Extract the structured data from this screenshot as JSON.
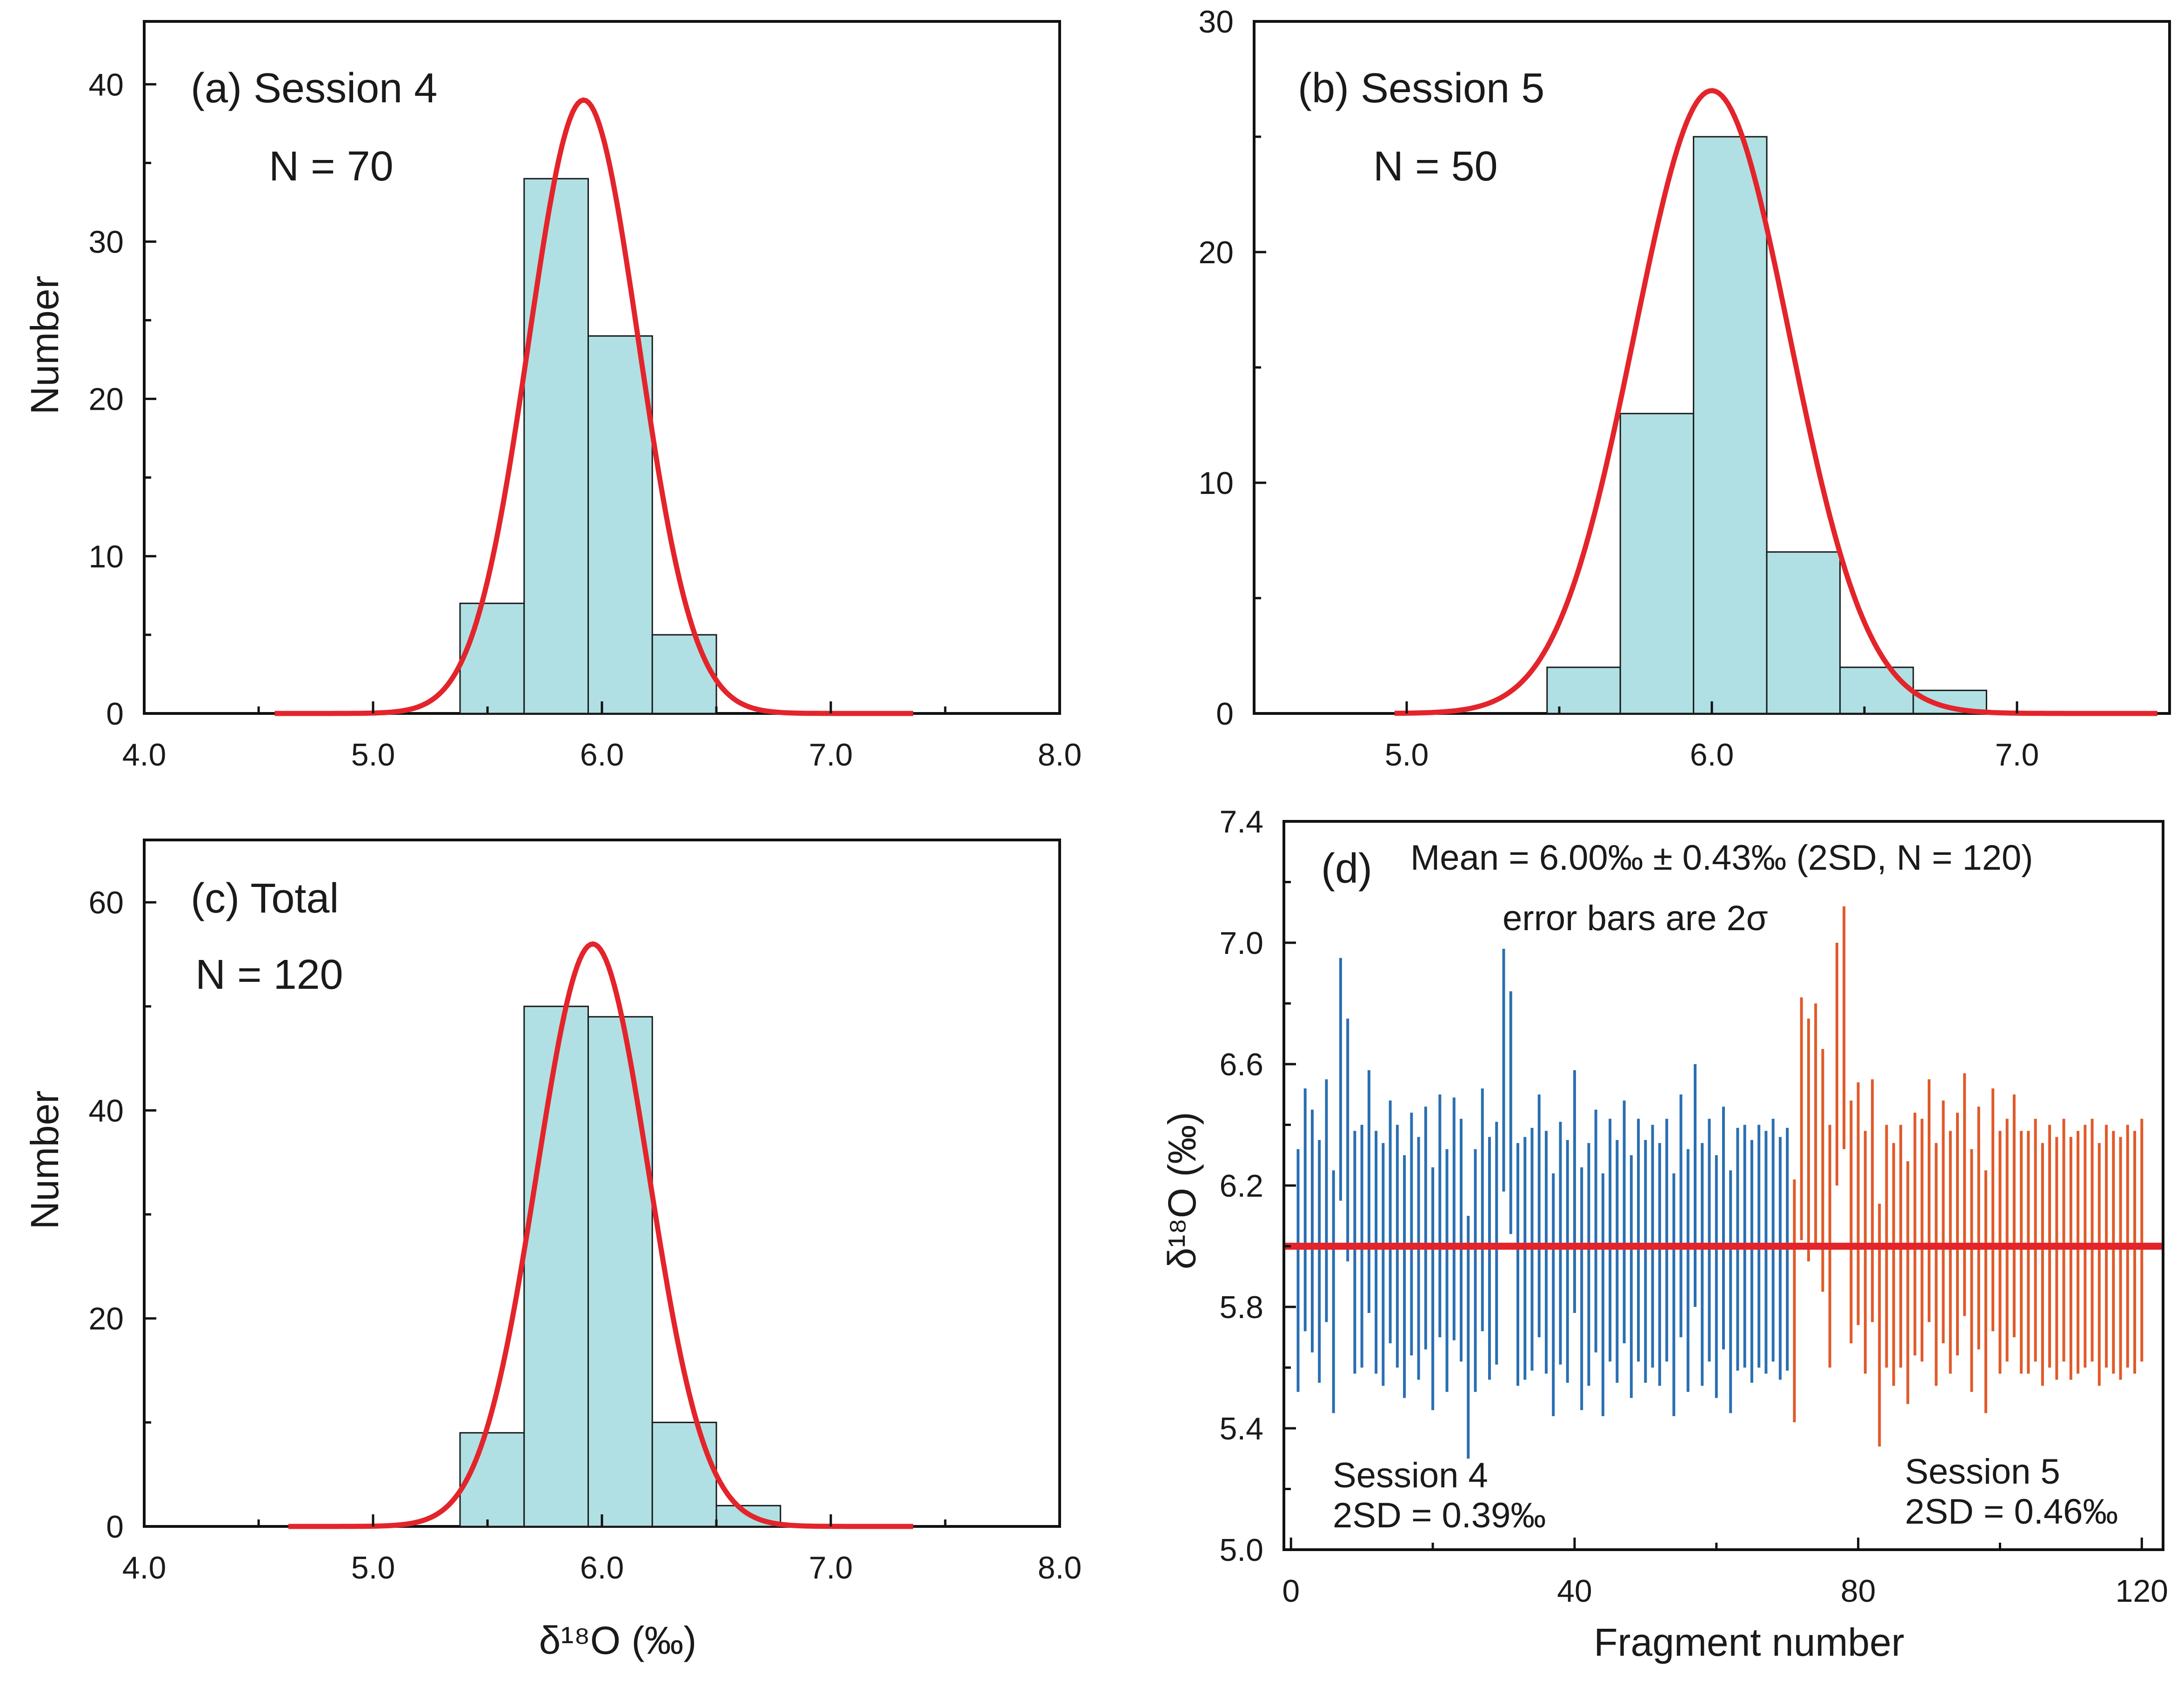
{
  "chart_data": [
    {
      "panel": "a",
      "type": "bar",
      "title": "(a) Session 4",
      "n_label": "N = 70",
      "ylabel": "Number",
      "xlabel": "",
      "xlim": [
        4.0,
        8.0
      ],
      "ylim": [
        0,
        44
      ],
      "xticks": [
        "4.0",
        "5.0",
        "6.0",
        "7.0",
        "8.0"
      ],
      "yticks": [
        "0",
        "10",
        "20",
        "30",
        "40"
      ],
      "bins": [
        {
          "x0": 5.38,
          "x1": 5.66,
          "count": 7
        },
        {
          "x0": 5.66,
          "x1": 5.94,
          "count": 34
        },
        {
          "x0": 5.94,
          "x1": 6.22,
          "count": 24
        },
        {
          "x0": 6.22,
          "x1": 6.5,
          "count": 5
        }
      ],
      "fit": {
        "mean": 5.92,
        "peak": 39,
        "sigma": 0.24,
        "x_range": [
          4.57,
          7.36
        ]
      }
    },
    {
      "panel": "b",
      "type": "bar",
      "title": "(b) Session 5",
      "n_label": "N = 50",
      "ylabel": "",
      "xlabel": "",
      "xlim": [
        4.5,
        7.5
      ],
      "ylim": [
        0,
        30
      ],
      "xticks": [
        "5.0",
        "6.0",
        "7.0"
      ],
      "yticks": [
        "0",
        "10",
        "20",
        "30"
      ],
      "bins": [
        {
          "x0": 5.46,
          "x1": 5.7,
          "count": 2
        },
        {
          "x0": 5.7,
          "x1": 5.94,
          "count": 13
        },
        {
          "x0": 5.94,
          "x1": 6.18,
          "count": 25
        },
        {
          "x0": 6.18,
          "x1": 6.42,
          "count": 7
        },
        {
          "x0": 6.42,
          "x1": 6.66,
          "count": 2
        },
        {
          "x0": 6.66,
          "x1": 6.9,
          "count": 1
        }
      ],
      "fit": {
        "mean": 6.0,
        "peak": 27,
        "sigma": 0.255,
        "x_range": [
          4.96,
          7.46
        ]
      }
    },
    {
      "panel": "c",
      "type": "bar",
      "title": "(c) Total",
      "n_label": "N = 120",
      "ylabel": "Number",
      "xlabel": "δ¹⁸O (‰)",
      "xlim": [
        4.0,
        8.0
      ],
      "ylim": [
        0,
        66
      ],
      "xticks": [
        "4.0",
        "5.0",
        "6.0",
        "7.0",
        "8.0"
      ],
      "yticks": [
        "0",
        "20",
        "40",
        "60"
      ],
      "bins": [
        {
          "x0": 5.38,
          "x1": 5.66,
          "count": 9
        },
        {
          "x0": 5.66,
          "x1": 5.94,
          "count": 50
        },
        {
          "x0": 5.94,
          "x1": 6.22,
          "count": 49
        },
        {
          "x0": 6.22,
          "x1": 6.5,
          "count": 10
        },
        {
          "x0": 6.5,
          "x1": 6.78,
          "count": 2
        }
      ],
      "fit": {
        "mean": 5.96,
        "peak": 56,
        "sigma": 0.245,
        "x_range": [
          4.63,
          7.36
        ]
      }
    },
    {
      "panel": "d",
      "type": "scatter",
      "title": "(d)",
      "mean_label": "Mean = 6.00‰ ± 0.43‰ (2SD, N = 120)",
      "error_label": "error bars are 2σ",
      "xlabel": "Fragment number",
      "ylabel": "δ¹⁸O (‰)",
      "xlim": [
        -1,
        123
      ],
      "ylim": [
        5.0,
        7.4
      ],
      "xticks": [
        "0",
        "40",
        "80",
        "120"
      ],
      "yticks": [
        "5.0",
        "5.4",
        "5.8",
        "6.2",
        "6.6",
        "7.0",
        "7.4"
      ],
      "mean_value": 6.0,
      "sessions": [
        {
          "name": "Session 4",
          "sd_label": "2SD = 0.39‰",
          "color": "#2a6fb2",
          "x_start": 1,
          "half_error": 0.4,
          "values": [
            5.92,
            6.12,
            6.05,
            5.95,
            6.15,
            5.85,
            6.55,
            6.35,
            5.98,
            6.0,
            6.18,
            5.98,
            5.94,
            6.08,
            6.0,
            5.9,
            6.04,
            5.96,
            6.06,
            5.86,
            6.1,
            5.92,
            6.09,
            6.02,
            5.7,
            5.92,
            6.12,
            5.96,
            6.01,
            6.58,
            6.44,
            5.94,
            5.96,
            5.99,
            6.1,
            5.98,
            5.84,
            6.01,
            5.95,
            6.18,
            5.86,
            5.94,
            6.05,
            5.84,
            6.02,
            5.95,
            6.08,
            5.9,
            6.02,
            5.95,
            6.0,
            5.94,
            6.02,
            5.84,
            6.1,
            5.92,
            6.2,
            5.94,
            6.02,
            5.9,
            6.06,
            5.85,
            5.99,
            6.0,
            5.95,
            6.0,
            5.98,
            6.02,
            5.96,
            5.99
          ]
        },
        {
          "name": "Session 5",
          "sd_label": "2SD = 0.46‰",
          "color": "#e05a2a",
          "x_start": 71,
          "half_error": 0.4,
          "values": [
            5.82,
            6.42,
            6.35,
            6.4,
            6.25,
            6.0,
            6.6,
            6.72,
            6.08,
            6.14,
            5.98,
            6.15,
            5.74,
            6.0,
            5.94,
            6.0,
            5.88,
            6.04,
            6.02,
            6.15,
            5.94,
            6.08,
            5.98,
            6.04,
            6.17,
            5.92,
            6.06,
            5.85,
            6.12,
            5.98,
            6.02,
            6.1,
            5.98,
            5.98,
            6.02,
            5.94,
            6.0,
            5.96,
            6.02,
            5.96,
            5.98,
            6.0,
            6.02,
            5.94,
            6.0,
            5.98,
            5.96,
            6.0,
            5.98,
            6.02
          ]
        }
      ]
    }
  ]
}
